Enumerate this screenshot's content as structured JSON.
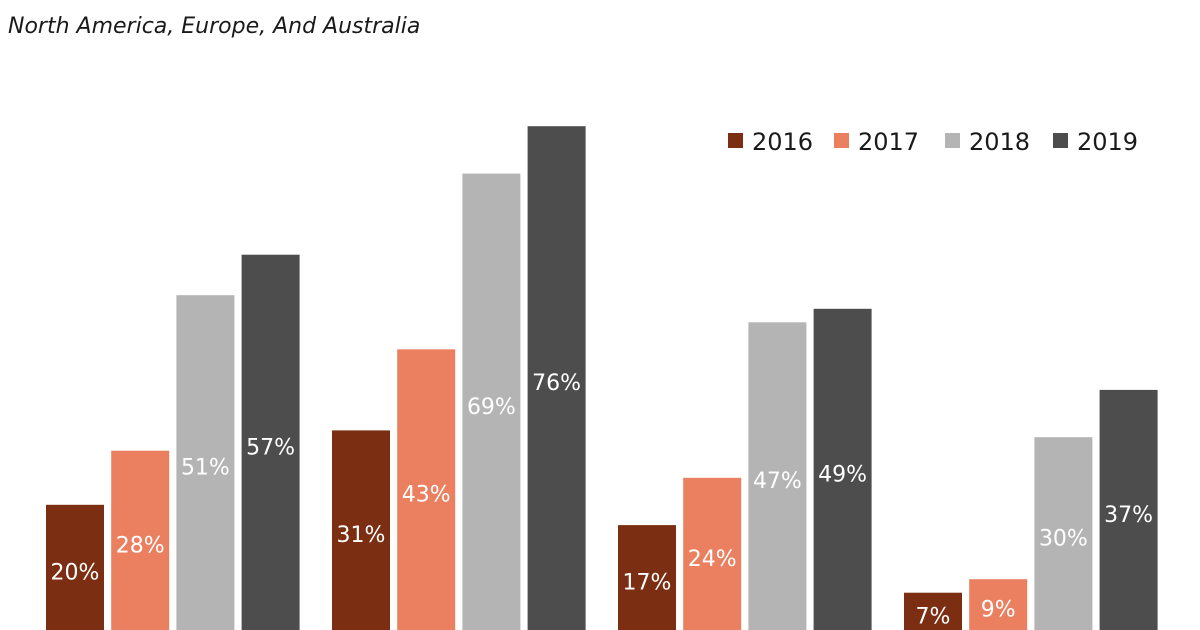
{
  "header": {
    "title": "",
    "subtitle": "North America, Europe, And Australia"
  },
  "chart_data": {
    "type": "bar",
    "title": "",
    "subtitle": "North America, Europe, And Australia",
    "categories": [
      "",
      "",
      "",
      ""
    ],
    "series": [
      {
        "name": "2016",
        "color": "#7B2E11",
        "values": [
          20,
          31,
          17,
          7
        ],
        "labels": [
          "20%",
          "31%",
          "17%",
          "7%"
        ]
      },
      {
        "name": "2017",
        "color": "#EB8060",
        "values": [
          28,
          43,
          24,
          9
        ],
        "labels": [
          "28%",
          "43%",
          "24%",
          "9%"
        ]
      },
      {
        "name": "2018",
        "color": "#B4B4B4",
        "values": [
          51,
          69,
          47,
          30
        ],
        "labels": [
          "51%",
          "69%",
          "47%",
          "30%"
        ]
      },
      {
        "name": "2019",
        "color": "#4D4D4D",
        "values": [
          57,
          76,
          49,
          37
        ],
        "labels": [
          "57%",
          "76%",
          "49%",
          "37%"
        ]
      }
    ],
    "value_unit": "%",
    "legend": "top-right",
    "grid": false,
    "data_labels": "inside bars",
    "label_colors": {
      "2016": "#FFFFFF",
      "2017": "#FFFFFF",
      "2018": "#FFFFFF",
      "2019": "#FFFFFF"
    }
  }
}
